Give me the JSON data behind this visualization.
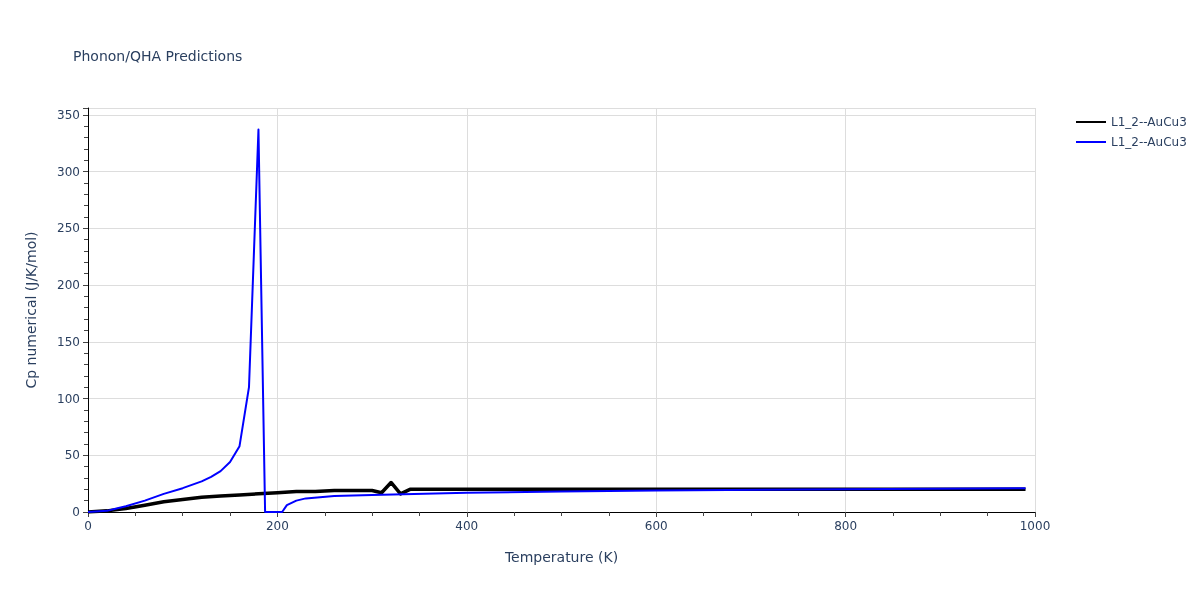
{
  "chart_data": {
    "type": "line",
    "title": "Phonon/QHA Predictions",
    "xlabel": "Temperature (K)",
    "ylabel": "Cp numerical (J/K/mol)",
    "xlim": [
      0,
      1000
    ],
    "ylim": [
      0,
      356
    ],
    "xticks": [
      0,
      {
        "value": 50,
        "label": null
      },
      200,
      {
        "value": 100,
        "label": null
      },
      {
        "value": 150,
        "label": null
      },
      {
        "value": 250,
        "label": null
      },
      {
        "value": 300,
        "label": null
      },
      400,
      {
        "value": 350,
        "label": null
      },
      {
        "value": 450,
        "label": null
      },
      {
        "value": 500,
        "label": null
      },
      600,
      {
        "value": 550,
        "label": null
      },
      {
        "value": 650,
        "label": null
      },
      {
        "value": 700,
        "label": null
      },
      800,
      {
        "value": 750,
        "label": null
      },
      {
        "value": 850,
        "label": null
      },
      {
        "value": 900,
        "label": null
      },
      1000,
      {
        "value": 950,
        "label": null
      }
    ],
    "yticks": [
      0,
      {
        "value": 10,
        "label": null
      },
      50,
      100,
      150,
      200,
      250,
      300,
      350
    ],
    "grid": true,
    "legend": "top right",
    "line_style": "solid",
    "marker": "none",
    "series": [
      {
        "name": "L1_2--AuCu3",
        "color": "#000000",
        "x": [
          0,
          20,
          40,
          60,
          80,
          100,
          120,
          140,
          160,
          180,
          200,
          220,
          240,
          260,
          280,
          290,
          300,
          310,
          320,
          330,
          340,
          350,
          400,
          500,
          600,
          700,
          800,
          990
        ],
        "values": [
          0,
          1,
          3,
          6,
          9,
          11,
          13,
          14,
          15,
          16,
          17,
          18,
          18,
          19,
          19,
          19,
          19,
          17,
          26,
          16,
          20,
          20,
          20,
          20,
          20,
          20,
          20,
          20
        ]
      },
      {
        "name": "L1_2--AuCu3",
        "color": "#0000ff",
        "x": [
          0,
          20,
          30,
          40,
          60,
          80,
          100,
          120,
          130,
          140,
          150,
          160,
          170,
          180,
          187,
          205,
          210,
          220,
          230,
          260,
          300,
          400,
          500,
          600,
          800,
          990
        ],
        "values": [
          0,
          1,
          3,
          5,
          10,
          16,
          21,
          27,
          31,
          36,
          44,
          58,
          110,
          337,
          0,
          0,
          6,
          10,
          12,
          14,
          15,
          17,
          18,
          19,
          20,
          21
        ]
      }
    ]
  }
}
